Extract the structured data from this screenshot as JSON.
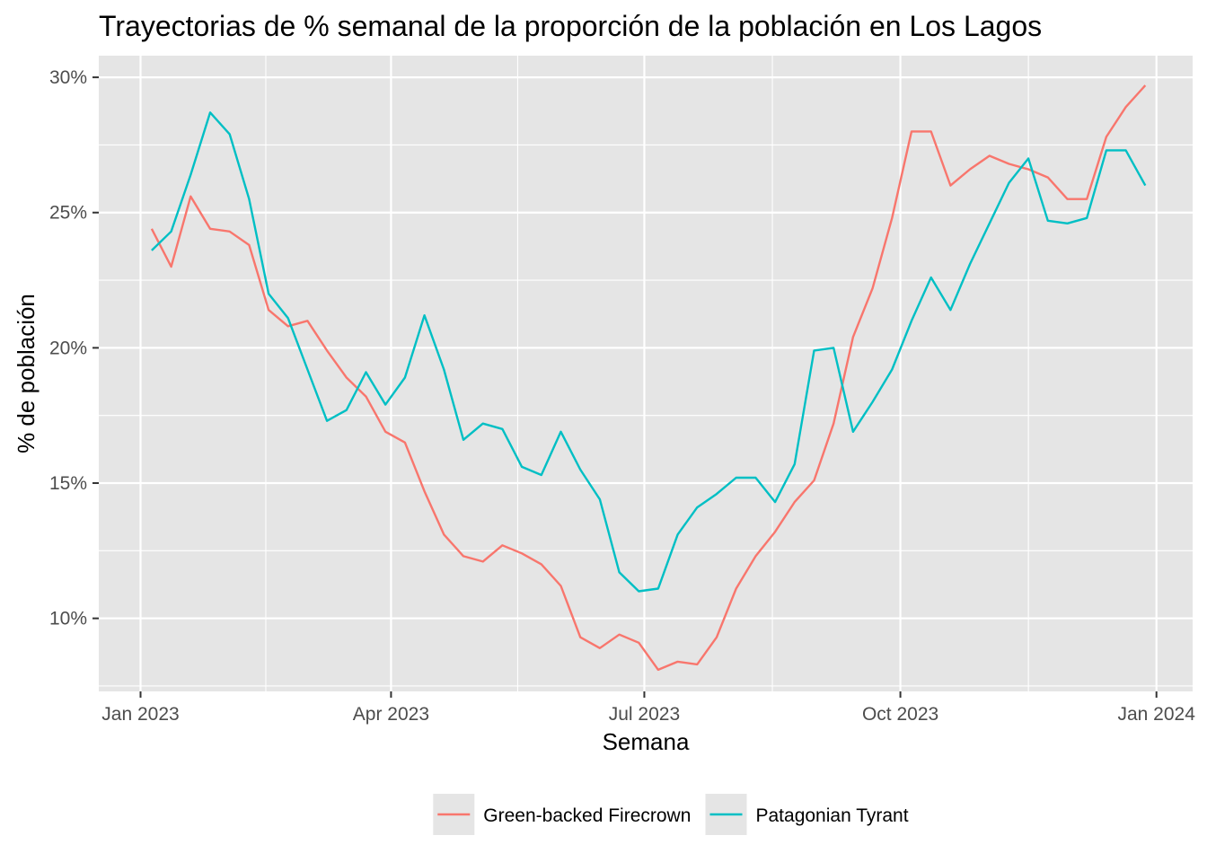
{
  "chart_data": {
    "type": "line",
    "title": "Trayectorias de % semanal de la proporción de la población en Los Lagos",
    "xlabel": "Semana",
    "ylabel": "% de población",
    "x_tick_labels": [
      "Jan 2023",
      "Apr 2023",
      "Jul 2023",
      "Oct 2023",
      "Jan 2024"
    ],
    "x_tick_dates": [
      "2023-01-01",
      "2023-04-01",
      "2023-07-01",
      "2023-10-01",
      "2024-01-01"
    ],
    "y_tick_labels": [
      "10%",
      "15%",
      "20%",
      "25%",
      "30%"
    ],
    "y_tick_values": [
      10,
      15,
      20,
      25,
      30
    ],
    "xlim": [
      "2022-12-17",
      "2024-01-14"
    ],
    "ylim": [
      7.3,
      30.8
    ],
    "grid": true,
    "legend_position": "bottom",
    "background_color": "#e5e5e5",
    "x": [
      "2023-01-05",
      "2023-01-12",
      "2023-01-19",
      "2023-01-26",
      "2023-02-02",
      "2023-02-09",
      "2023-02-16",
      "2023-02-23",
      "2023-03-02",
      "2023-03-09",
      "2023-03-16",
      "2023-03-23",
      "2023-03-30",
      "2023-04-06",
      "2023-04-13",
      "2023-04-20",
      "2023-04-27",
      "2023-05-04",
      "2023-05-11",
      "2023-05-18",
      "2023-05-25",
      "2023-06-01",
      "2023-06-08",
      "2023-06-15",
      "2023-06-22",
      "2023-06-29",
      "2023-07-06",
      "2023-07-13",
      "2023-07-20",
      "2023-07-27",
      "2023-08-03",
      "2023-08-10",
      "2023-08-17",
      "2023-08-24",
      "2023-08-31",
      "2023-09-07",
      "2023-09-14",
      "2023-09-21",
      "2023-09-28",
      "2023-10-05",
      "2023-10-12",
      "2023-10-19",
      "2023-10-26",
      "2023-11-02",
      "2023-11-09",
      "2023-11-16",
      "2023-11-23",
      "2023-11-30",
      "2023-12-07",
      "2023-12-14",
      "2023-12-21",
      "2023-12-28"
    ],
    "series": [
      {
        "name": "Green-backed Firecrown",
        "color": "#f8766d",
        "values": [
          24.4,
          23.0,
          25.6,
          24.4,
          24.3,
          23.8,
          21.4,
          20.8,
          21.0,
          19.9,
          18.9,
          18.2,
          16.9,
          16.5,
          14.7,
          13.1,
          12.3,
          12.1,
          12.7,
          12.4,
          12.0,
          11.2,
          9.3,
          8.9,
          9.4,
          9.1,
          8.1,
          8.4,
          8.3,
          9.3,
          11.1,
          12.3,
          13.2,
          14.3,
          15.1,
          17.2,
          20.4,
          22.2,
          24.8,
          28.0,
          28.0,
          26.0,
          26.6,
          27.1,
          26.8,
          26.6,
          26.3,
          25.5,
          25.5,
          27.8,
          28.9,
          29.7
        ]
      },
      {
        "name": "Patagonian Tyrant",
        "color": "#00bfc4",
        "values": [
          23.6,
          24.3,
          26.4,
          28.7,
          27.9,
          25.5,
          22.0,
          21.1,
          19.2,
          17.3,
          17.7,
          19.1,
          17.9,
          18.9,
          21.2,
          19.2,
          16.6,
          17.2,
          17.0,
          15.6,
          15.3,
          16.9,
          15.5,
          14.4,
          11.7,
          11.0,
          11.1,
          13.1,
          14.1,
          14.6,
          15.2,
          15.2,
          14.3,
          15.7,
          19.9,
          20.0,
          16.9,
          18.0,
          19.2,
          21.0,
          22.6,
          21.4,
          23.1,
          24.6,
          26.1,
          27.0,
          24.7,
          24.6,
          24.8,
          27.3,
          27.3,
          26.0
        ]
      }
    ]
  }
}
